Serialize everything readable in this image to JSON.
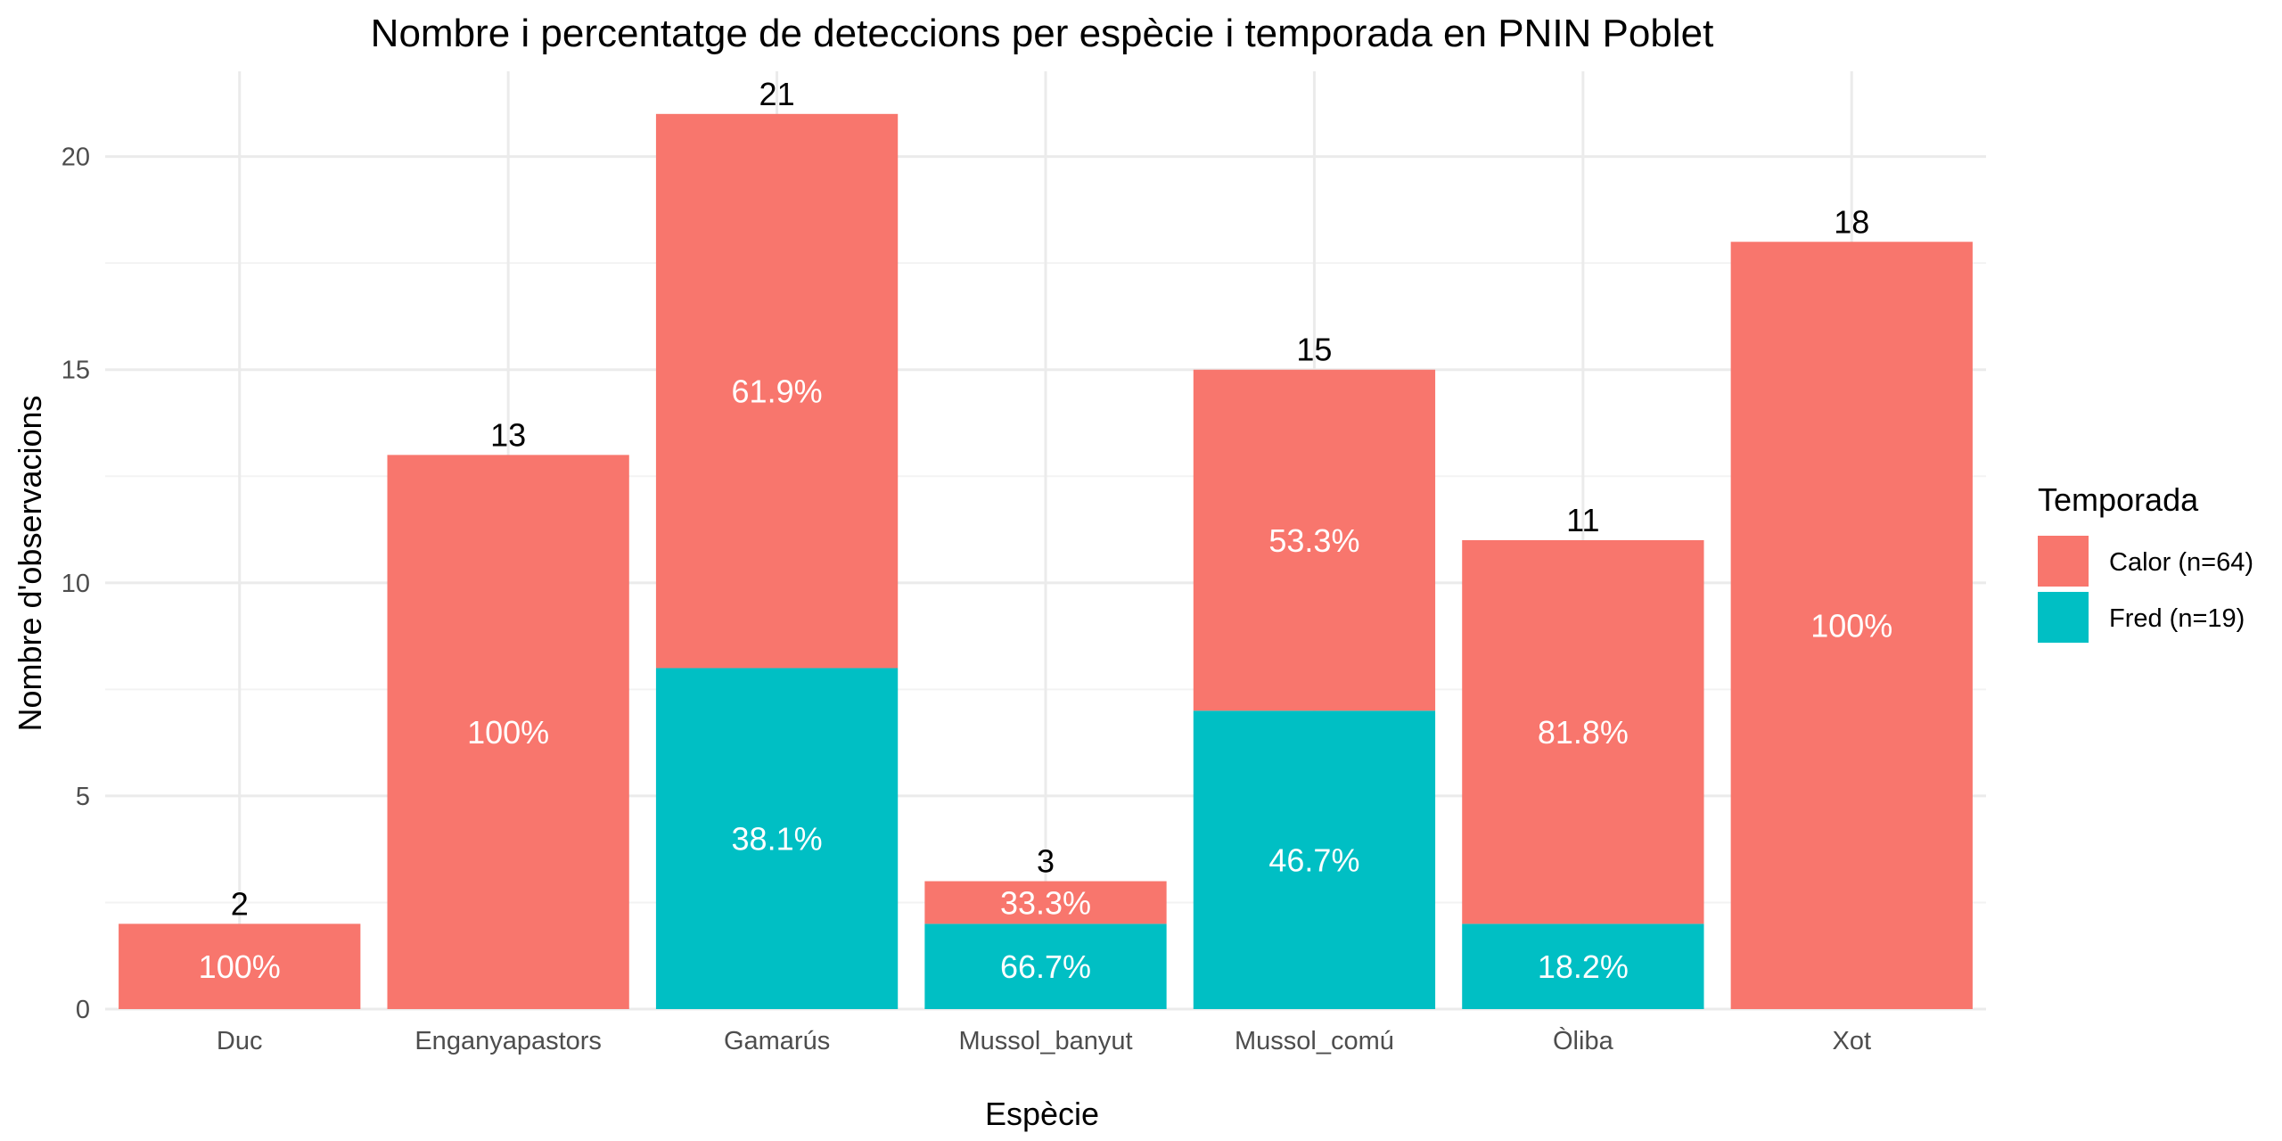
{
  "chart_data": {
    "type": "bar",
    "stacked": true,
    "title": "Nombre i percentatge de deteccions per espècie i temporada en PNIN Poblet",
    "xlabel": "Espècie",
    "ylabel": "Nombre d'observacions",
    "ylim": [
      0,
      22
    ],
    "yticks": [
      0,
      5,
      10,
      15,
      20
    ],
    "grid": true,
    "categories": [
      "Duc",
      "Enganyapastors",
      "Gamarús",
      "Mussol_banyut",
      "Mussol_comú",
      "Òliba",
      "Xot"
    ],
    "series": [
      {
        "name": "Fred (n=19)",
        "color": "#00BFC4",
        "values": [
          0,
          0,
          8,
          2,
          7,
          2,
          0
        ],
        "labels": [
          "",
          "",
          "38.1%",
          "66.7%",
          "46.7%",
          "18.2%",
          ""
        ]
      },
      {
        "name": "Calor (n=64)",
        "color": "#F8766D",
        "values": [
          2,
          13,
          13,
          1,
          8,
          9,
          18
        ],
        "labels": [
          "100%",
          "100%",
          "61.9%",
          "33.3%",
          "53.3%",
          "81.8%",
          "100%"
        ]
      }
    ],
    "totals": [
      "2",
      "13",
      "21",
      "3",
      "15",
      "11",
      "18"
    ],
    "legend": {
      "title": "Temporada",
      "position": "right",
      "items": [
        {
          "label": "Calor (n=64)",
          "color": "#F8766D"
        },
        {
          "label": "Fred (n=19)",
          "color": "#00BFC4"
        }
      ]
    }
  }
}
